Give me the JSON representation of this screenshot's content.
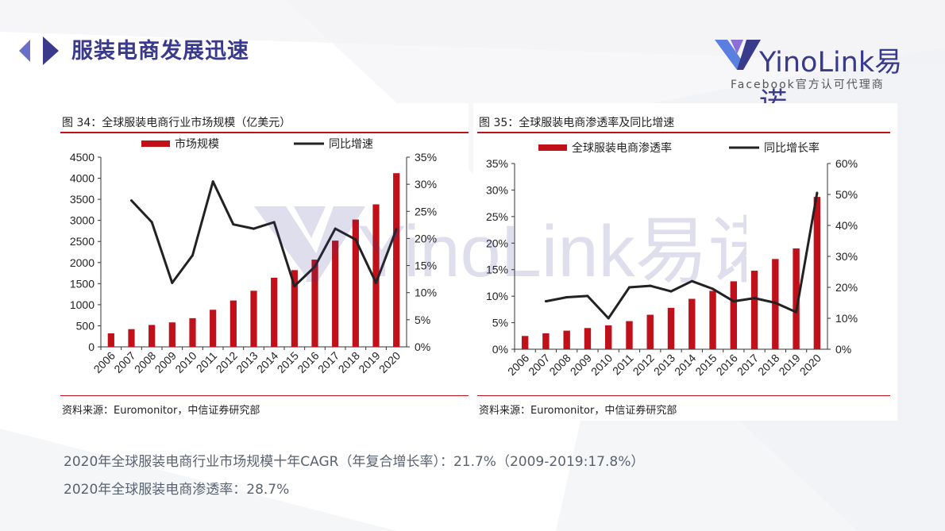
{
  "header": {
    "title": "服装电商发展迅速"
  },
  "logo": {
    "wordmark": "YinoLink易诺",
    "tagline": "Facebook官方认可代理商"
  },
  "watermark": {
    "text": "YinoLink易诺"
  },
  "colors": {
    "bar": "#c0101a",
    "line": "#222222",
    "title": "#3a3a8c",
    "rule": "#c0101a"
  },
  "charts": [
    {
      "title": "图 34：全球服装电商行业市场规模（亿美元）",
      "source": "资料来源：Euromonitor，中信证券研究部"
    },
    {
      "title": "图 35：全球服装电商渗透率及同比增速",
      "source": "资料来源：Euromonitor，中信证券研究部"
    }
  ],
  "chart_data": [
    {
      "type": "bar",
      "categories": [
        "2006",
        "2007",
        "2008",
        "2009",
        "2010",
        "2011",
        "2012",
        "2013",
        "2014",
        "2015",
        "2016",
        "2017",
        "2018",
        "2019",
        "2020"
      ],
      "series": [
        {
          "name": "市场规模",
          "type": "bar",
          "axis": "left",
          "values": [
            320,
            420,
            520,
            580,
            680,
            880,
            1100,
            1330,
            1640,
            1820,
            2070,
            2520,
            3020,
            3380,
            4120
          ]
        },
        {
          "name": "同比增速",
          "type": "line",
          "axis": "right",
          "values": [
            null,
            27.0,
            23.0,
            11.8,
            16.9,
            30.5,
            22.6,
            21.8,
            23.0,
            11.2,
            14.8,
            21.8,
            19.8,
            11.8,
            21.7
          ]
        }
      ],
      "left_ticks": [
        "0",
        "500",
        "1000",
        "1500",
        "2000",
        "2500",
        "3000",
        "3500",
        "4000",
        "4500"
      ],
      "right_ticks": [
        "0%",
        "5%",
        "10%",
        "15%",
        "20%",
        "25%",
        "30%",
        "35%"
      ],
      "ylim_left": [
        0,
        4500
      ],
      "ylim_right": [
        0,
        35
      ],
      "legend_position": "top"
    },
    {
      "type": "bar",
      "categories": [
        "2006",
        "2007",
        "2008",
        "2009",
        "2010",
        "2011",
        "2012",
        "2013",
        "2014",
        "2015",
        "2016",
        "2017",
        "2018",
        "2019",
        "2020"
      ],
      "series": [
        {
          "name": "全球服装电商渗透率",
          "type": "bar",
          "axis": "left",
          "values": [
            2.5,
            3.0,
            3.5,
            4.0,
            4.5,
            5.3,
            6.5,
            7.8,
            9.5,
            11.0,
            12.8,
            14.8,
            17.0,
            19.0,
            28.7
          ]
        },
        {
          "name": "同比增长率",
          "type": "line",
          "axis": "right",
          "values": [
            null,
            15.5,
            16.8,
            17.2,
            10.0,
            20.0,
            20.5,
            18.7,
            22.0,
            19.5,
            15.5,
            16.5,
            15.0,
            12.0,
            50.5
          ]
        }
      ],
      "left_ticks": [
        "0%",
        "5%",
        "10%",
        "15%",
        "20%",
        "25%",
        "30%",
        "35%"
      ],
      "right_ticks": [
        "0%",
        "10%",
        "20%",
        "30%",
        "40%",
        "50%",
        "60%"
      ],
      "ylim_left": [
        0,
        35
      ],
      "ylim_right": [
        0,
        60
      ],
      "legend_position": "top"
    }
  ],
  "summary": {
    "line1": "2020年全球服装电商行业市场规模十年CAGR（年复合增长率）：21.7%（2009-2019:17.8%）",
    "line2": "2020年全球服装电商渗透率：28.7%"
  }
}
